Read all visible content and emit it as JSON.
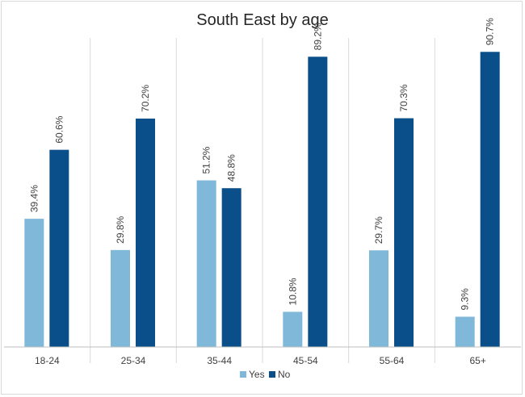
{
  "chart_data": {
    "type": "bar",
    "title": "South East by age",
    "categories": [
      "18-24",
      "25-34",
      "35-44",
      "45-54",
      "55-64",
      "65+"
    ],
    "series": [
      {
        "name": "Yes",
        "color": "#7fb8d9",
        "values": [
          39.4,
          29.8,
          51.2,
          10.8,
          29.7,
          9.3
        ],
        "labels": [
          "39.4%",
          "29.8%",
          "51.2%",
          "10.8%",
          "29.7%",
          "9.3%"
        ]
      },
      {
        "name": "No",
        "color": "#0a4f8a",
        "values": [
          60.6,
          70.2,
          48.8,
          89.2,
          70.3,
          90.7
        ],
        "labels": [
          "60.6%",
          "70.2%",
          "48.8%",
          "89.2%",
          "70.3%",
          "90.7%"
        ]
      }
    ],
    "ylim": [
      0,
      100
    ],
    "grid": "vertical category separators",
    "legend": "bottom-center"
  }
}
